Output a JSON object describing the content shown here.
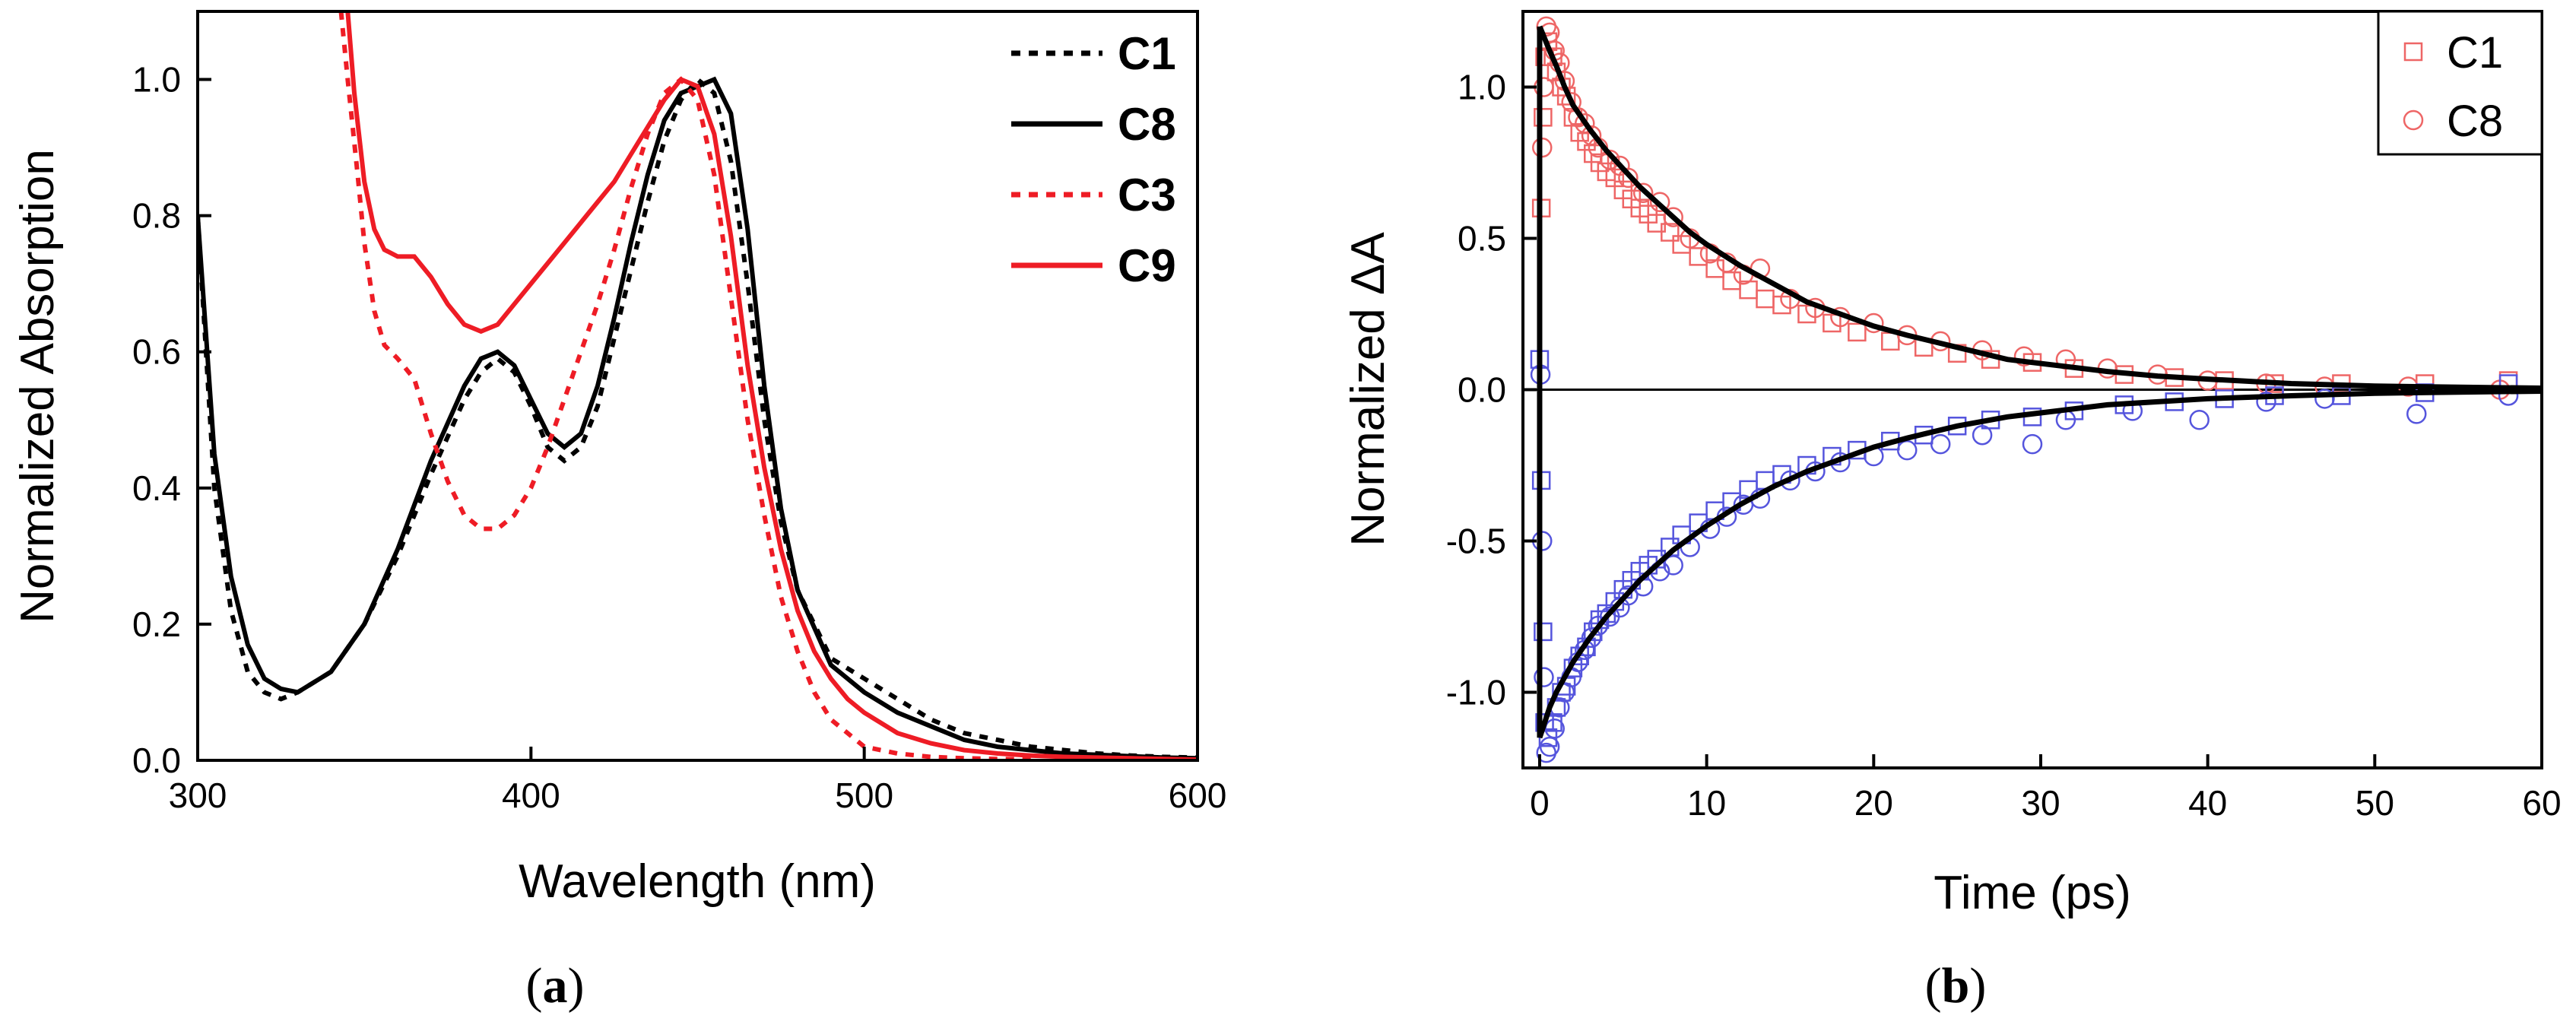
{
  "chart_data": [
    {
      "type": "line",
      "panel_label": {
        "open": "(",
        "letter": "a",
        "close": ")"
      },
      "xlabel": "Wavelength (nm)",
      "ylabel": "Normalized Absorption",
      "xlim": [
        300,
        600
      ],
      "ylim": [
        0,
        1.1
      ],
      "xticks": [
        "300",
        "400",
        "500",
        "600"
      ],
      "yticks": [
        "0.0",
        "0.2",
        "0.4",
        "0.6",
        "0.8",
        "1.0"
      ],
      "legend_position": "top-right",
      "series": [
        {
          "name": "C1",
          "color": "#000000",
          "dash": "dotted",
          "x": [
            300,
            305,
            310,
            315,
            320,
            325,
            330,
            340,
            350,
            360,
            370,
            380,
            385,
            390,
            395,
            400,
            405,
            410,
            415,
            420,
            425,
            430,
            435,
            440,
            445,
            450,
            455,
            460,
            465,
            470,
            475,
            480,
            490,
            500,
            510,
            520,
            530,
            540,
            550,
            560,
            570,
            580,
            590,
            600
          ],
          "y": [
            0.8,
            0.4,
            0.22,
            0.13,
            0.1,
            0.09,
            0.1,
            0.13,
            0.2,
            0.3,
            0.42,
            0.53,
            0.57,
            0.59,
            0.57,
            0.52,
            0.46,
            0.44,
            0.46,
            0.52,
            0.62,
            0.72,
            0.82,
            0.91,
            0.97,
            1.0,
            0.98,
            0.88,
            0.7,
            0.5,
            0.35,
            0.25,
            0.15,
            0.12,
            0.09,
            0.06,
            0.04,
            0.03,
            0.02,
            0.015,
            0.01,
            0.007,
            0.005,
            0.004
          ]
        },
        {
          "name": "C8",
          "color": "#000000",
          "dash": "solid",
          "x": [
            300,
            305,
            310,
            315,
            320,
            325,
            330,
            340,
            350,
            360,
            370,
            380,
            385,
            390,
            395,
            400,
            405,
            410,
            415,
            420,
            425,
            430,
            435,
            440,
            445,
            450,
            455,
            460,
            465,
            470,
            475,
            480,
            490,
            500,
            510,
            520,
            530,
            540,
            550,
            560,
            570,
            580,
            590,
            600
          ],
          "y": [
            0.8,
            0.45,
            0.27,
            0.17,
            0.12,
            0.105,
            0.1,
            0.13,
            0.2,
            0.31,
            0.44,
            0.55,
            0.59,
            0.6,
            0.58,
            0.53,
            0.48,
            0.46,
            0.48,
            0.55,
            0.65,
            0.76,
            0.86,
            0.94,
            0.98,
            0.99,
            1.0,
            0.95,
            0.78,
            0.55,
            0.37,
            0.25,
            0.14,
            0.1,
            0.07,
            0.05,
            0.03,
            0.02,
            0.015,
            0.01,
            0.008,
            0.006,
            0.004,
            0.003
          ]
        },
        {
          "name": "C3",
          "color": "#ee1c25",
          "dash": "dotted",
          "x": [
            343,
            345,
            348,
            350,
            353,
            356,
            360,
            365,
            370,
            375,
            380,
            385,
            390,
            395,
            400,
            405,
            410,
            415,
            420,
            425,
            430,
            435,
            440,
            445,
            450,
            455,
            460,
            465,
            470,
            475,
            480,
            485,
            490,
            495,
            500,
            510,
            520,
            530,
            540,
            550
          ],
          "y": [
            1.1,
            1.0,
            0.86,
            0.76,
            0.66,
            0.61,
            0.59,
            0.56,
            0.48,
            0.41,
            0.36,
            0.34,
            0.34,
            0.36,
            0.4,
            0.46,
            0.53,
            0.6,
            0.67,
            0.75,
            0.84,
            0.92,
            0.98,
            1.0,
            0.97,
            0.86,
            0.68,
            0.5,
            0.36,
            0.24,
            0.16,
            0.1,
            0.06,
            0.04,
            0.02,
            0.01,
            0.005,
            0.003,
            0.002,
            0.001
          ]
        },
        {
          "name": "C9",
          "color": "#ee1c25",
          "dash": "solid",
          "x": [
            345,
            347,
            350,
            353,
            356,
            360,
            365,
            370,
            375,
            380,
            385,
            390,
            395,
            400,
            405,
            410,
            415,
            420,
            425,
            430,
            435,
            440,
            445,
            450,
            455,
            460,
            465,
            470,
            475,
            480,
            485,
            490,
            495,
            500,
            510,
            520,
            530,
            540,
            550,
            560,
            570,
            580,
            590,
            600
          ],
          "y": [
            1.1,
            0.98,
            0.85,
            0.78,
            0.75,
            0.74,
            0.74,
            0.71,
            0.67,
            0.64,
            0.63,
            0.64,
            0.67,
            0.7,
            0.73,
            0.76,
            0.79,
            0.82,
            0.85,
            0.89,
            0.93,
            0.97,
            1.0,
            0.99,
            0.92,
            0.77,
            0.58,
            0.43,
            0.31,
            0.22,
            0.16,
            0.12,
            0.09,
            0.07,
            0.04,
            0.025,
            0.015,
            0.01,
            0.007,
            0.005,
            0.004,
            0.003,
            0.002,
            0.001
          ]
        }
      ]
    },
    {
      "type": "scatter",
      "panel_label": {
        "open": "(",
        "letter": "b",
        "close": ")"
      },
      "xlabel": "Time (ps)",
      "ylabel": "Normalized ΔA",
      "xlim": [
        -1,
        60
      ],
      "ylim": [
        -1.25,
        1.25
      ],
      "xticks": [
        "0",
        "10",
        "20",
        "30",
        "40",
        "50",
        "60"
      ],
      "yticks": [
        "-1.0",
        "-0.5",
        "0.0",
        "0.5",
        "1.0"
      ],
      "zero_line": true,
      "legend_position": "top-right",
      "legend": [
        {
          "name": "C1",
          "marker": "square",
          "color": "#ee6666"
        },
        {
          "name": "C8",
          "marker": "circle",
          "color": "#ee6666"
        }
      ],
      "series": [
        {
          "name": "",
          "marker": "square",
          "color": "#ee6666",
          "x": [
            0.1,
            0.2,
            0.3,
            0.5,
            0.8,
            1.0,
            1.3,
            1.6,
            2.0,
            2.4,
            2.8,
            3.2,
            3.6,
            4.0,
            4.5,
            5.0,
            5.5,
            6.0,
            6.5,
            7.0,
            7.8,
            8.5,
            9.5,
            10.5,
            11.5,
            12.5,
            13.5,
            14.5,
            16.0,
            17.5,
            19.0,
            21.0,
            23.0,
            25.0,
            27.0,
            29.5,
            32.0,
            35.0,
            38.0,
            41.0,
            44.0,
            48.0,
            53.0,
            58.0
          ],
          "y": [
            0.6,
            0.9,
            1.1,
            1.15,
            1.1,
            1.05,
            1.0,
            0.97,
            0.9,
            0.85,
            0.82,
            0.78,
            0.75,
            0.72,
            0.7,
            0.66,
            0.63,
            0.6,
            0.58,
            0.55,
            0.52,
            0.48,
            0.44,
            0.4,
            0.36,
            0.33,
            0.3,
            0.28,
            0.25,
            0.22,
            0.19,
            0.16,
            0.14,
            0.12,
            0.1,
            0.09,
            0.07,
            0.05,
            0.04,
            0.03,
            0.02,
            0.02,
            0.02,
            0.03
          ]
        },
        {
          "name": "",
          "marker": "circle",
          "color": "#ee6666",
          "x": [
            0.15,
            0.25,
            0.4,
            0.6,
            0.9,
            1.2,
            1.5,
            1.9,
            2.3,
            2.7,
            3.1,
            3.5,
            4.2,
            4.8,
            5.3,
            6.2,
            7.2,
            8.0,
            9.0,
            10.2,
            11.2,
            12.2,
            13.2,
            15.0,
            16.5,
            18.0,
            20.0,
            22.0,
            24.0,
            26.5,
            29.0,
            31.5,
            34.0,
            37.0,
            40.0,
            43.5,
            47.0,
            52.0,
            57.5
          ],
          "y": [
            0.8,
            1.0,
            1.2,
            1.18,
            1.12,
            1.08,
            1.02,
            0.95,
            0.9,
            0.88,
            0.84,
            0.8,
            0.76,
            0.74,
            0.7,
            0.65,
            0.62,
            0.57,
            0.5,
            0.45,
            0.42,
            0.38,
            0.4,
            0.3,
            0.27,
            0.24,
            0.22,
            0.18,
            0.16,
            0.13,
            0.11,
            0.1,
            0.07,
            0.05,
            0.03,
            0.02,
            0.01,
            0.01,
            0.0
          ]
        },
        {
          "name": "",
          "marker": "square",
          "color": "#5555dd",
          "x": [
            0.0,
            0.1,
            0.2,
            0.3,
            0.5,
            0.8,
            1.0,
            1.3,
            1.6,
            2.0,
            2.4,
            2.8,
            3.2,
            3.6,
            4.0,
            4.5,
            5.0,
            5.5,
            6.0,
            6.5,
            7.0,
            7.8,
            8.5,
            9.5,
            10.5,
            11.5,
            12.5,
            13.5,
            14.5,
            16.0,
            17.5,
            19.0,
            21.0,
            23.0,
            25.0,
            27.0,
            29.5,
            32.0,
            35.0,
            38.0,
            41.0,
            44.0,
            48.0,
            53.0,
            58.0
          ],
          "y": [
            0.1,
            -0.3,
            -0.8,
            -1.1,
            -1.15,
            -1.1,
            -1.05,
            -1.0,
            -0.98,
            -0.92,
            -0.88,
            -0.85,
            -0.8,
            -0.76,
            -0.74,
            -0.7,
            -0.66,
            -0.63,
            -0.6,
            -0.58,
            -0.56,
            -0.52,
            -0.48,
            -0.44,
            -0.4,
            -0.37,
            -0.33,
            -0.3,
            -0.28,
            -0.25,
            -0.22,
            -0.2,
            -0.17,
            -0.15,
            -0.12,
            -0.1,
            -0.09,
            -0.07,
            -0.05,
            -0.04,
            -0.03,
            -0.02,
            -0.02,
            -0.01,
            0.02
          ]
        },
        {
          "name": "",
          "marker": "circle",
          "color": "#5555dd",
          "x": [
            0.05,
            0.15,
            0.25,
            0.4,
            0.6,
            0.9,
            1.2,
            1.5,
            1.9,
            2.3,
            2.7,
            3.1,
            3.5,
            4.2,
            4.8,
            5.3,
            6.2,
            7.2,
            8.0,
            9.0,
            10.2,
            11.2,
            12.2,
            13.2,
            15.0,
            16.5,
            18.0,
            20.0,
            22.0,
            24.0,
            26.5,
            29.5,
            31.5,
            35.5,
            39.5,
            43.5,
            47.0,
            52.5,
            58.0
          ],
          "y": [
            0.05,
            -0.5,
            -0.95,
            -1.2,
            -1.18,
            -1.12,
            -1.05,
            -1.0,
            -0.95,
            -0.9,
            -0.86,
            -0.82,
            -0.78,
            -0.75,
            -0.72,
            -0.68,
            -0.65,
            -0.6,
            -0.58,
            -0.52,
            -0.46,
            -0.42,
            -0.38,
            -0.36,
            -0.3,
            -0.27,
            -0.24,
            -0.22,
            -0.2,
            -0.18,
            -0.15,
            -0.18,
            -0.1,
            -0.07,
            -0.1,
            -0.04,
            -0.03,
            -0.08,
            -0.02
          ]
        },
        {
          "name": "",
          "marker": "line",
          "color": "#000000",
          "x": [
            0,
            0.3,
            0.6,
            1.0,
            1.5,
            2,
            3,
            4,
            5,
            6,
            7,
            8,
            9,
            10,
            12,
            14,
            16,
            18,
            20,
            22,
            25,
            28,
            31,
            34,
            37,
            40,
            45,
            50,
            55,
            60
          ],
          "y": [
            1.2,
            1.16,
            1.12,
            1.07,
            1.0,
            0.94,
            0.86,
            0.79,
            0.73,
            0.67,
            0.62,
            0.57,
            0.52,
            0.48,
            0.41,
            0.35,
            0.29,
            0.25,
            0.21,
            0.18,
            0.14,
            0.1,
            0.08,
            0.06,
            0.045,
            0.035,
            0.02,
            0.012,
            0.008,
            0.005
          ]
        },
        {
          "name": "",
          "marker": "line",
          "color": "#000000",
          "x": [
            0,
            0.3,
            0.6,
            1.0,
            1.5,
            2,
            3,
            4,
            5,
            6,
            7,
            8,
            9,
            10,
            12,
            14,
            16,
            18,
            20,
            22,
            25,
            28,
            31,
            34,
            37,
            40,
            45,
            50,
            55,
            60
          ],
          "y": [
            -1.15,
            -1.1,
            -1.05,
            -1.0,
            -0.95,
            -0.9,
            -0.82,
            -0.75,
            -0.69,
            -0.63,
            -0.58,
            -0.53,
            -0.49,
            -0.45,
            -0.38,
            -0.32,
            -0.27,
            -0.23,
            -0.19,
            -0.16,
            -0.12,
            -0.09,
            -0.07,
            -0.05,
            -0.04,
            -0.03,
            -0.02,
            -0.012,
            -0.008,
            -0.005
          ]
        }
      ]
    }
  ]
}
